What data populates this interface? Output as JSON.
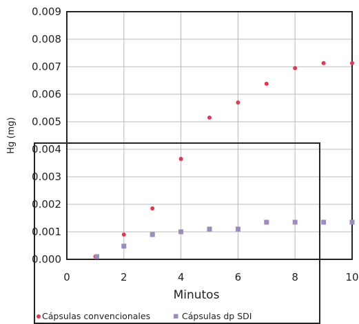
{
  "chart_data": {
    "type": "scatter",
    "title": "",
    "xlabel": "Minutos",
    "ylabel": "Hg (mg)",
    "xlim": [
      0,
      10
    ],
    "ylim": [
      0,
      0.009
    ],
    "x_ticks": [
      "0",
      "2",
      "4",
      "6",
      "8",
      "10"
    ],
    "y_ticks": [
      "0.000",
      "0.001",
      "0.002",
      "0.003",
      "0.004",
      "0.005",
      "0.006",
      "0.007",
      "0.008",
      "0.009"
    ],
    "grid": true,
    "legend_position": "bottom",
    "series": [
      {
        "name": "Cápsulas convencionales",
        "marker": "circle",
        "color": "#e8344e",
        "x": [
          1,
          2,
          3,
          4,
          5,
          6,
          7,
          8,
          9,
          10
        ],
        "y": [
          0.0001,
          0.0009,
          0.00185,
          0.00365,
          0.00515,
          0.0057,
          0.00638,
          0.00695,
          0.00713,
          0.00713
        ]
      },
      {
        "name": "Cápsulas dp SDI",
        "marker": "square",
        "color": "#9b8bbf",
        "x": [
          1.05,
          2,
          3,
          4,
          5,
          6,
          7,
          8,
          9,
          10
        ],
        "y": [
          0.0001,
          0.00048,
          0.0009,
          0.001,
          0.0011,
          0.0011,
          0.00135,
          0.00135,
          0.00135,
          0.00135
        ]
      }
    ]
  }
}
